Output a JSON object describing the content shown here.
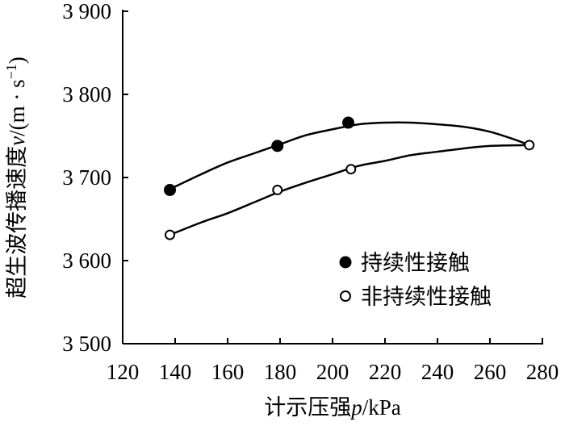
{
  "chart_data": {
    "type": "scatter",
    "title": "",
    "xlabel_text": "计示压强",
    "xlabel_var": "p",
    "xlabel_unit": "/kPa",
    "ylabel_text": "超生波传播速度",
    "ylabel_var": "v",
    "ylabel_unit": "/(m · s",
    "ylabel_exp": "−1",
    "ylabel_close": ")",
    "xlim": [
      120,
      280
    ],
    "ylim": [
      3500,
      3900
    ],
    "x_ticks": [
      120,
      140,
      160,
      180,
      200,
      220,
      240,
      260,
      280
    ],
    "y_ticks": [
      3500,
      3600,
      3700,
      3800,
      3900
    ],
    "x_tick_labels": [
      "120",
      "140",
      "160",
      "180",
      "200",
      "220",
      "240",
      "260",
      "280"
    ],
    "y_tick_labels": [
      "3 500",
      "3 600",
      "3 700",
      "3 800",
      "3 900"
    ],
    "grid": false,
    "legend_position": "lower-right",
    "series": [
      {
        "name": "持续性接触",
        "marker": "filled-circle",
        "points": [
          [
            138,
            3685
          ],
          [
            179,
            3738
          ],
          [
            206,
            3766
          ]
        ],
        "fit_curve": [
          [
            138,
            3686
          ],
          [
            150,
            3704
          ],
          [
            160,
            3718
          ],
          [
            170,
            3729
          ],
          [
            180,
            3740
          ],
          [
            190,
            3751
          ],
          [
            200,
            3758
          ],
          [
            210,
            3764
          ],
          [
            220,
            3766
          ],
          [
            230,
            3766
          ],
          [
            240,
            3764
          ],
          [
            250,
            3761
          ],
          [
            260,
            3755
          ],
          [
            270,
            3745
          ],
          [
            275,
            3739
          ]
        ]
      },
      {
        "name": "非持续性接触",
        "marker": "open-circle",
        "points": [
          [
            138,
            3631
          ],
          [
            179,
            3685
          ],
          [
            207,
            3710
          ],
          [
            275,
            3739
          ]
        ],
        "fit_curve": [
          [
            138,
            3631
          ],
          [
            150,
            3646
          ],
          [
            160,
            3657
          ],
          [
            170,
            3670
          ],
          [
            180,
            3683
          ],
          [
            190,
            3694
          ],
          [
            200,
            3704
          ],
          [
            210,
            3714
          ],
          [
            220,
            3720
          ],
          [
            230,
            3727
          ],
          [
            240,
            3731
          ],
          [
            250,
            3735
          ],
          [
            260,
            3738
          ],
          [
            275,
            3739
          ]
        ]
      }
    ]
  }
}
